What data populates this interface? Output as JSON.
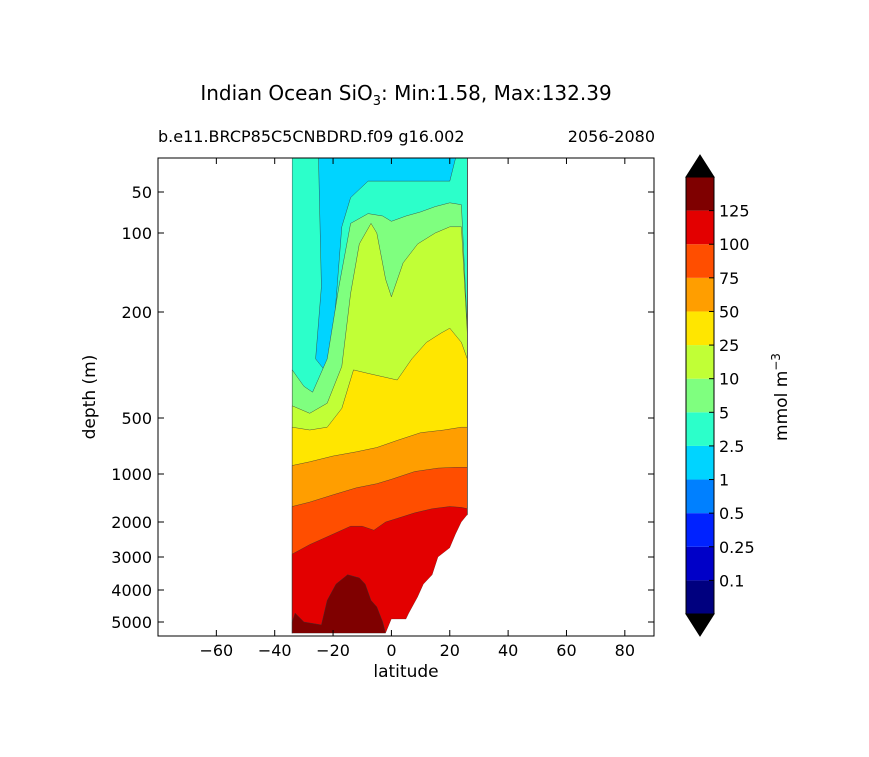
{
  "chart_data": {
    "type": "contourf",
    "title": "Indian Ocean SiO",
    "title_sub": "3",
    "title_stats": ": Min:1.58, Max:132.39",
    "subtitle_left": "b.e11.BRCP85C5CNBDRD.f09 g16.002",
    "subtitle_right": "2056-2080",
    "xlabel": "latitude",
    "ylabel": "depth (m)",
    "xlim": [
      -80,
      90
    ],
    "ylim": [
      5500,
      25
    ],
    "y_scale": "symlog-like",
    "xticks": [
      -60,
      -40,
      -20,
      0,
      20,
      40,
      60,
      80
    ],
    "xtick_labels": [
      "−60",
      "−40",
      "−20",
      "0",
      "20",
      "40",
      "60",
      "80"
    ],
    "yticks": [
      50,
      100,
      200,
      500,
      1000,
      2000,
      3000,
      4000,
      5000
    ],
    "ytick_labels": [
      "50",
      "100",
      "200",
      "500",
      "1000",
      "2000",
      "3000",
      "4000",
      "5000"
    ],
    "data_extent": {
      "lat_min": -34,
      "lat_max": 26,
      "depth_min": 25,
      "depth_max": 5400
    },
    "colorbar": {
      "label": "mmol m",
      "label_exp": "−3",
      "levels": [
        0.1,
        0.25,
        0.5,
        1,
        2.5,
        5,
        10,
        25,
        50,
        75,
        100,
        125
      ],
      "level_labels": [
        "0.1",
        "0.25",
        "0.5",
        "1",
        "2.5",
        "5",
        "10",
        "25",
        "50",
        "75",
        "100",
        "125"
      ],
      "colors": [
        "#00007f",
        "#0000c8",
        "#0022ff",
        "#0080ff",
        "#00d4ff",
        "#2cffca",
        "#7fff7f",
        "#c1ff36",
        "#ffe600",
        "#ff9e00",
        "#ff4e00",
        "#e30000",
        "#7f0000"
      ],
      "extend": "both",
      "under_color": "#000000",
      "over_color": "#000000"
    },
    "contour_bands": [
      {
        "level": "1-2.5",
        "color_index": 4,
        "top_depths": [
          [
            -34,
            25
          ],
          [
            26,
            25
          ]
        ]
      },
      {
        "level": "2.5-5",
        "color_index": 5,
        "top_depths": [
          [
            -34,
            25
          ],
          [
            -25,
            25
          ],
          [
            -24,
            160
          ],
          [
            -26,
            300
          ],
          [
            -22,
            340
          ],
          [
            -20,
            250
          ],
          [
            -17,
            90
          ],
          [
            -14,
            55
          ],
          [
            -8,
            40
          ],
          [
            -2,
            40
          ],
          [
            6,
            40
          ],
          [
            13,
            40
          ],
          [
            20,
            40
          ],
          [
            22,
            25
          ],
          [
            26,
            25
          ]
        ]
      },
      {
        "level": "5-10",
        "color_index": 6,
        "top_depths": [
          [
            -34,
            330
          ],
          [
            -30,
            380
          ],
          [
            -27,
            400
          ],
          [
            -22,
            300
          ],
          [
            -18,
            160
          ],
          [
            -14,
            85
          ],
          [
            -8,
            72
          ],
          [
            -3,
            75
          ],
          [
            0,
            82
          ],
          [
            5,
            75
          ],
          [
            10,
            70
          ],
          [
            15,
            64
          ],
          [
            20,
            60
          ],
          [
            24,
            62
          ],
          [
            26,
            230
          ]
        ]
      },
      {
        "level": "10-25",
        "color_index": 7,
        "top_depths": [
          [
            -34,
            450
          ],
          [
            -28,
            480
          ],
          [
            -22,
            440
          ],
          [
            -17,
            320
          ],
          [
            -14,
            170
          ],
          [
            -11,
            110
          ],
          [
            -7,
            85
          ],
          [
            -5,
            100
          ],
          [
            -2,
            150
          ],
          [
            0,
            175
          ],
          [
            4,
            130
          ],
          [
            9,
            110
          ],
          [
            15,
            100
          ],
          [
            20,
            90
          ],
          [
            24,
            90
          ],
          [
            26,
            240
          ]
        ]
      },
      {
        "level": "25-50",
        "color_index": 8,
        "top_depths": [
          [
            -34,
            560
          ],
          [
            -28,
            580
          ],
          [
            -22,
            560
          ],
          [
            -17,
            460
          ],
          [
            -13,
            330
          ],
          [
            -8,
            340
          ],
          [
            -3,
            350
          ],
          [
            2,
            360
          ],
          [
            7,
            300
          ],
          [
            12,
            260
          ],
          [
            17,
            240
          ],
          [
            20,
            230
          ],
          [
            24,
            260
          ],
          [
            26,
            300
          ]
        ]
      },
      {
        "level": "50-75",
        "color_index": 9,
        "top_depths": [
          [
            -34,
            900
          ],
          [
            -28,
            860
          ],
          [
            -20,
            800
          ],
          [
            -12,
            760
          ],
          [
            -5,
            720
          ],
          [
            2,
            660
          ],
          [
            10,
            600
          ],
          [
            18,
            580
          ],
          [
            24,
            560
          ],
          [
            26,
            560
          ]
        ]
      },
      {
        "level": "75-100",
        "color_index": 10,
        "top_depths": [
          [
            -34,
            1600
          ],
          [
            -28,
            1500
          ],
          [
            -20,
            1350
          ],
          [
            -12,
            1220
          ],
          [
            -5,
            1150
          ],
          [
            0,
            1080
          ],
          [
            8,
            970
          ],
          [
            16,
            930
          ],
          [
            22,
            920
          ],
          [
            26,
            920
          ]
        ]
      },
      {
        "level": "100-125",
        "color_index": 11,
        "top_depths": [
          [
            -34,
            2900
          ],
          [
            -28,
            2600
          ],
          [
            -20,
            2300
          ],
          [
            -14,
            2100
          ],
          [
            -10,
            2100
          ],
          [
            -6,
            2200
          ],
          [
            -2,
            2000
          ],
          [
            2,
            1900
          ],
          [
            8,
            1750
          ],
          [
            14,
            1650
          ],
          [
            20,
            1600
          ],
          [
            24,
            1620
          ],
          [
            26,
            1650
          ]
        ]
      },
      {
        "level": ">125",
        "color_index": 12,
        "top_depths": [
          [
            -34,
            5000
          ],
          [
            -33,
            4700
          ],
          [
            -30,
            5000
          ],
          [
            -24,
            5100
          ],
          [
            -22,
            4300
          ],
          [
            -19,
            3800
          ],
          [
            -15,
            3500
          ],
          [
            -11,
            3600
          ],
          [
            -9,
            3800
          ],
          [
            -7,
            4300
          ],
          [
            -5,
            4500
          ],
          [
            -3,
            5000
          ],
          [
            -2,
            5400
          ]
        ]
      }
    ]
  }
}
